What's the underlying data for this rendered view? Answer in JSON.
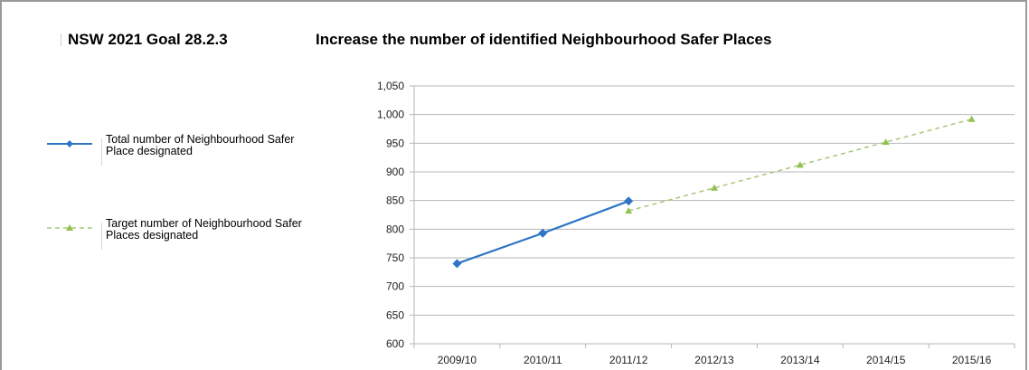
{
  "header": {
    "goal": "NSW 2021 Goal 28.2.3",
    "title": "Increase the number of identified Neighbourhood Safer Places"
  },
  "legend": [
    {
      "label_line1": "Total number of Neighbourhood Safer",
      "label_line2": "Place designated",
      "color": "#2e75c6",
      "marker": "diamond",
      "style": "solid"
    },
    {
      "label_line1": "Target number of Neighbourhood Safer",
      "label_line2": "Places designated",
      "color": "#a8c77a",
      "marker": "triangle",
      "style": "dashed"
    }
  ],
  "chart_data": {
    "type": "line",
    "title": "Increase the number of identified Neighbourhood Safer Places",
    "categories": [
      "2009/10",
      "2010/11",
      "2011/12",
      "2012/13",
      "2013/14",
      "2014/15",
      "2015/16"
    ],
    "ylim": [
      600,
      1050
    ],
    "yticks": [
      600,
      650,
      700,
      750,
      800,
      850,
      900,
      950,
      1000,
      1050
    ],
    "ytick_labels": [
      "600",
      "650",
      "700",
      "750",
      "800",
      "850",
      "900",
      "950",
      "1,000",
      "1,050"
    ],
    "grid": true,
    "legend_position": "left",
    "series": [
      {
        "name": "Total number of Neighbourhood Safer Place designated",
        "color": "#2e75c6",
        "marker": "diamond",
        "style": "solid",
        "values": [
          740,
          793,
          849,
          null,
          null,
          null,
          null
        ]
      },
      {
        "name": "Target number of Neighbourhood Safer Places designated",
        "color": "#a8c77a",
        "marker": "triangle",
        "style": "dashed",
        "values": [
          null,
          null,
          832,
          872,
          912,
          952,
          992
        ]
      }
    ]
  }
}
